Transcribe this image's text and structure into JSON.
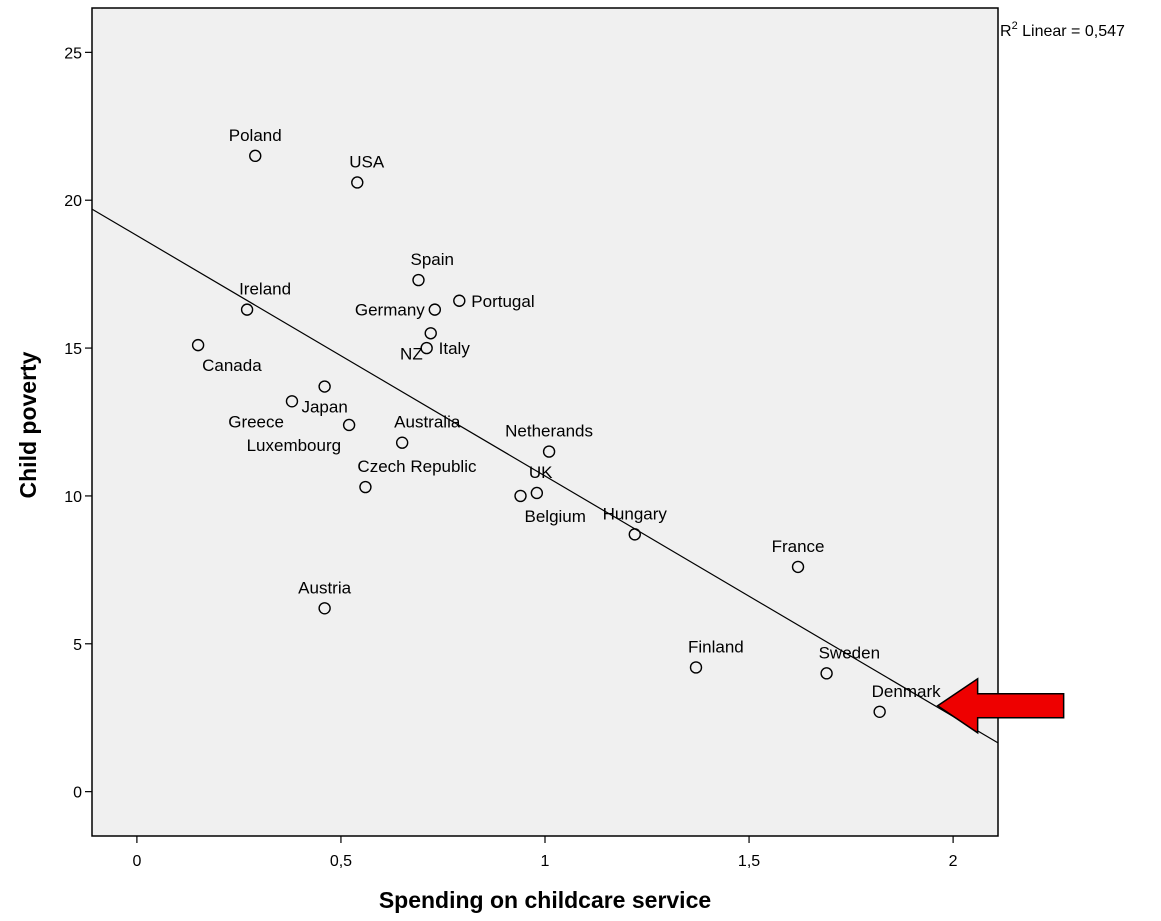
{
  "chart_data": {
    "type": "scatter",
    "title": "",
    "xlabel": "Spending on childcare service",
    "ylabel": "Child poverty",
    "xlim": [
      -0.11,
      2.11
    ],
    "ylim": [
      -1.5,
      26.5
    ],
    "x_ticks": [
      {
        "value": 0,
        "label": "0"
      },
      {
        "value": 0.5,
        "label": "0,5"
      },
      {
        "value": 1,
        "label": "1"
      },
      {
        "value": 1.5,
        "label": "1,5"
      },
      {
        "value": 2,
        "label": "2"
      }
    ],
    "y_ticks": [
      {
        "value": 0,
        "label": "0"
      },
      {
        "value": 5,
        "label": "5"
      },
      {
        "value": 10,
        "label": "10"
      },
      {
        "value": 15,
        "label": "15"
      },
      {
        "value": 20,
        "label": "20"
      },
      {
        "value": 25,
        "label": "25"
      }
    ],
    "grid": false,
    "plot_background": "#f0f0f0",
    "marker_color": "#000000",
    "fit_line": {
      "type": "linear",
      "r2_label_base": "R",
      "r2_label_sup": "2",
      "r2_label_rest": " Linear = 0,547",
      "x_start": -0.11,
      "y_start": 19.7,
      "x_end": 2.11,
      "y_end": 1.65
    },
    "points": [
      {
        "label": "Poland",
        "x": 0.29,
        "y": 21.5,
        "label_anchor": "above"
      },
      {
        "label": "USA",
        "x": 0.54,
        "y": 20.6,
        "label_anchor": "above-right"
      },
      {
        "label": "Spain",
        "x": 0.69,
        "y": 17.3,
        "label_anchor": "above-right"
      },
      {
        "label": "Ireland",
        "x": 0.27,
        "y": 16.3,
        "label_anchor": "above-right"
      },
      {
        "label": "Germany",
        "x": 0.73,
        "y": 16.3,
        "label_anchor": "left"
      },
      {
        "label": "Portugal",
        "x": 0.79,
        "y": 16.6,
        "label_anchor": "right"
      },
      {
        "label": "Canada",
        "x": 0.15,
        "y": 15.1,
        "label_anchor": "below-right"
      },
      {
        "label": "Italy",
        "x": 0.71,
        "y": 15.0,
        "label_anchor": "right"
      },
      {
        "label": "NZ",
        "x": 0.72,
        "y": 15.5,
        "label_anchor": "below-left"
      },
      {
        "label": "Japan",
        "x": 0.46,
        "y": 13.7,
        "label_anchor": "below"
      },
      {
        "label": "Greece",
        "x": 0.38,
        "y": 13.2,
        "label_anchor": "below-left"
      },
      {
        "label": "Luxembourg",
        "x": 0.52,
        "y": 12.4,
        "label_anchor": "below-left"
      },
      {
        "label": "Australia",
        "x": 0.65,
        "y": 11.8,
        "label_anchor": "above-right"
      },
      {
        "label": "Netherands",
        "x": 1.01,
        "y": 11.5,
        "label_anchor": "above"
      },
      {
        "label": "Czech Republic",
        "x": 0.56,
        "y": 10.3,
        "label_anchor": "above-right"
      },
      {
        "label": "UK",
        "x": 0.98,
        "y": 10.1,
        "label_anchor": "above-right"
      },
      {
        "label": "Belgium",
        "x": 0.94,
        "y": 10.0,
        "label_anchor": "below-right"
      },
      {
        "label": "Hungary",
        "x": 1.22,
        "y": 8.7,
        "label_anchor": "above"
      },
      {
        "label": "France",
        "x": 1.62,
        "y": 7.6,
        "label_anchor": "above"
      },
      {
        "label": "Austria",
        "x": 0.46,
        "y": 6.2,
        "label_anchor": "above"
      },
      {
        "label": "Finland",
        "x": 1.37,
        "y": 4.2,
        "label_anchor": "above-right"
      },
      {
        "label": "Sweden",
        "x": 1.69,
        "y": 4.0,
        "label_anchor": "above-right"
      },
      {
        "label": "Denmark",
        "x": 1.82,
        "y": 2.7,
        "label_anchor": "above-right"
      }
    ],
    "annotation_arrow": {
      "color": "#ee0000",
      "stroke": "#000000",
      "points_to": "Denmark"
    }
  }
}
